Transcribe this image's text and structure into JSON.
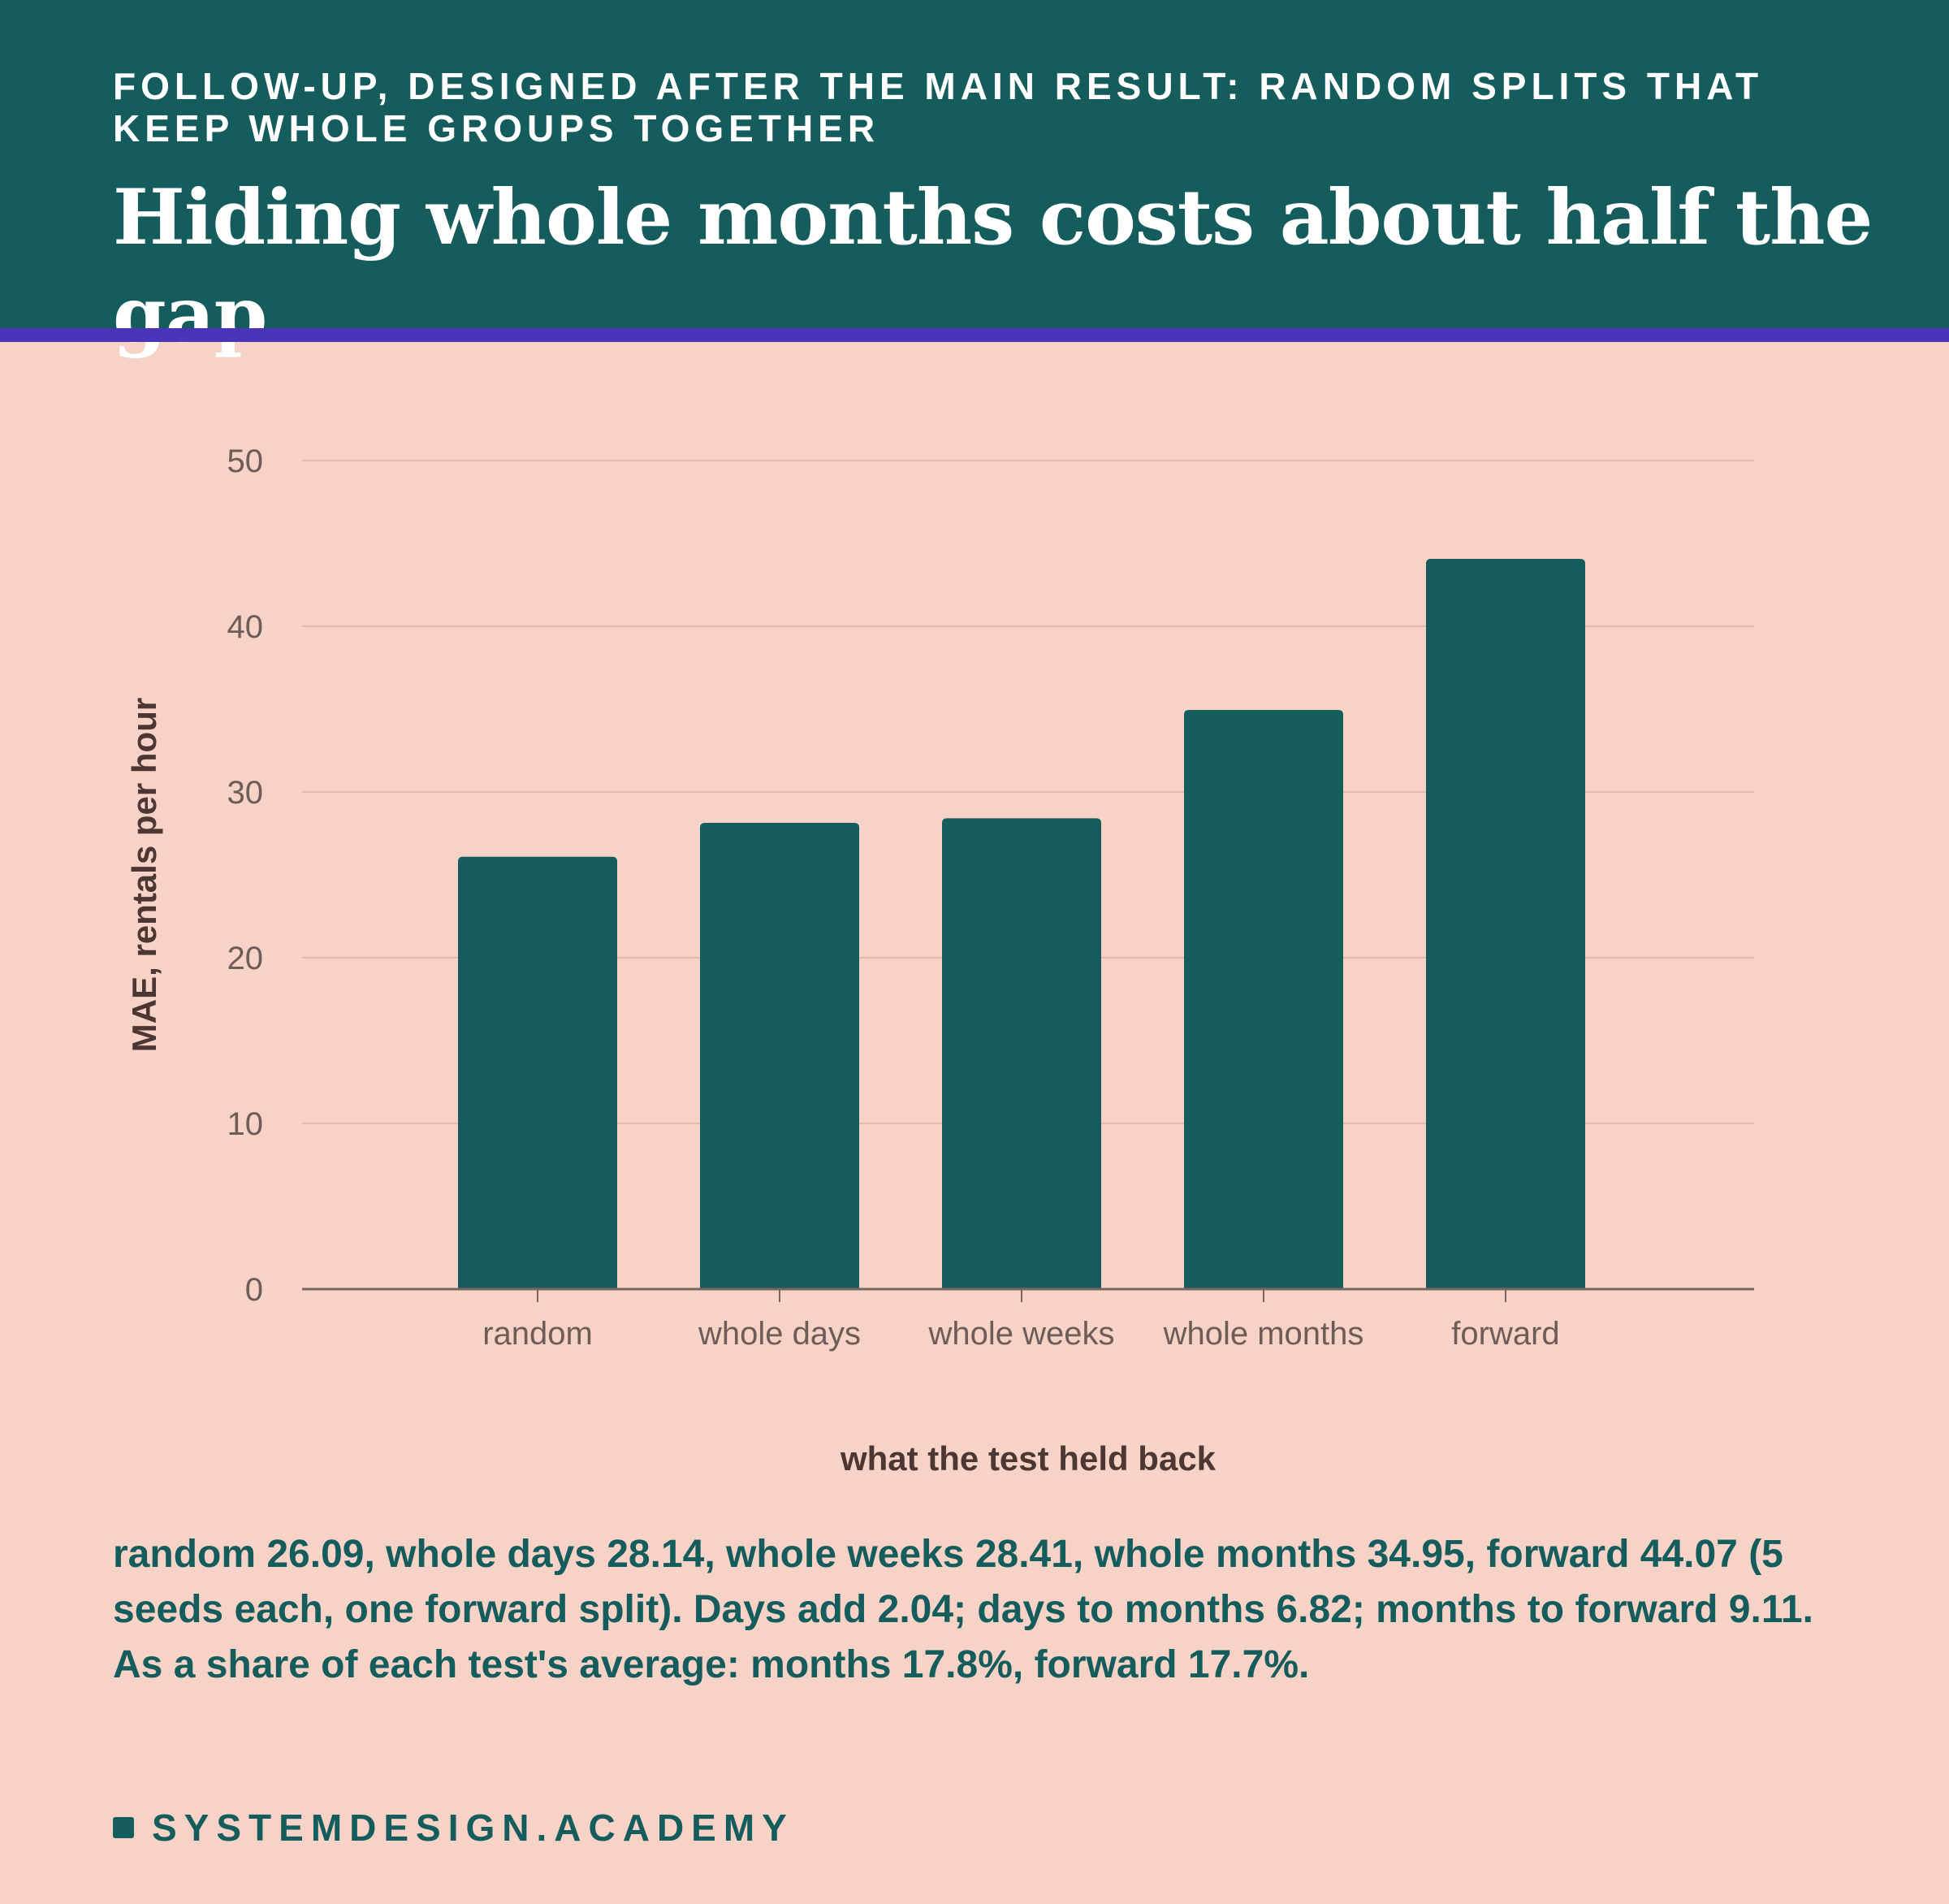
{
  "header": {
    "kicker": "FOLLOW-UP, DESIGNED AFTER THE MAIN RESULT: RANDOM SPLITS THAT KEEP WHOLE GROUPS TOGETHER",
    "title": "Hiding whole months costs about half the gap"
  },
  "colors": {
    "header_bg": "#155c5c",
    "accent_rule": "#4a35b8",
    "background": "#f6d2c7",
    "bar": "#155c5c"
  },
  "chart_data": {
    "type": "bar",
    "categories": [
      "random",
      "whole days",
      "whole weeks",
      "whole months",
      "forward"
    ],
    "values": [
      26.09,
      28.14,
      28.41,
      34.95,
      44.07
    ],
    "xlabel": "what the test held back",
    "ylabel": "MAE, rentals per hour",
    "ylim": [
      0,
      50
    ],
    "yticks": [
      0,
      10,
      20,
      30,
      40,
      50
    ],
    "grid": true,
    "legend": "none"
  },
  "note": "random 26.09, whole days 28.14, whole weeks 28.41, whole months 34.95, forward 44.07 (5 seeds each, one forward split). Days add 2.04; days to months 6.82; months to forward 9.11. As a share of each test's average: months 17.8%, forward 17.7%.",
  "brand": {
    "text": "SYSTEMDESIGN.ACADEMY"
  }
}
